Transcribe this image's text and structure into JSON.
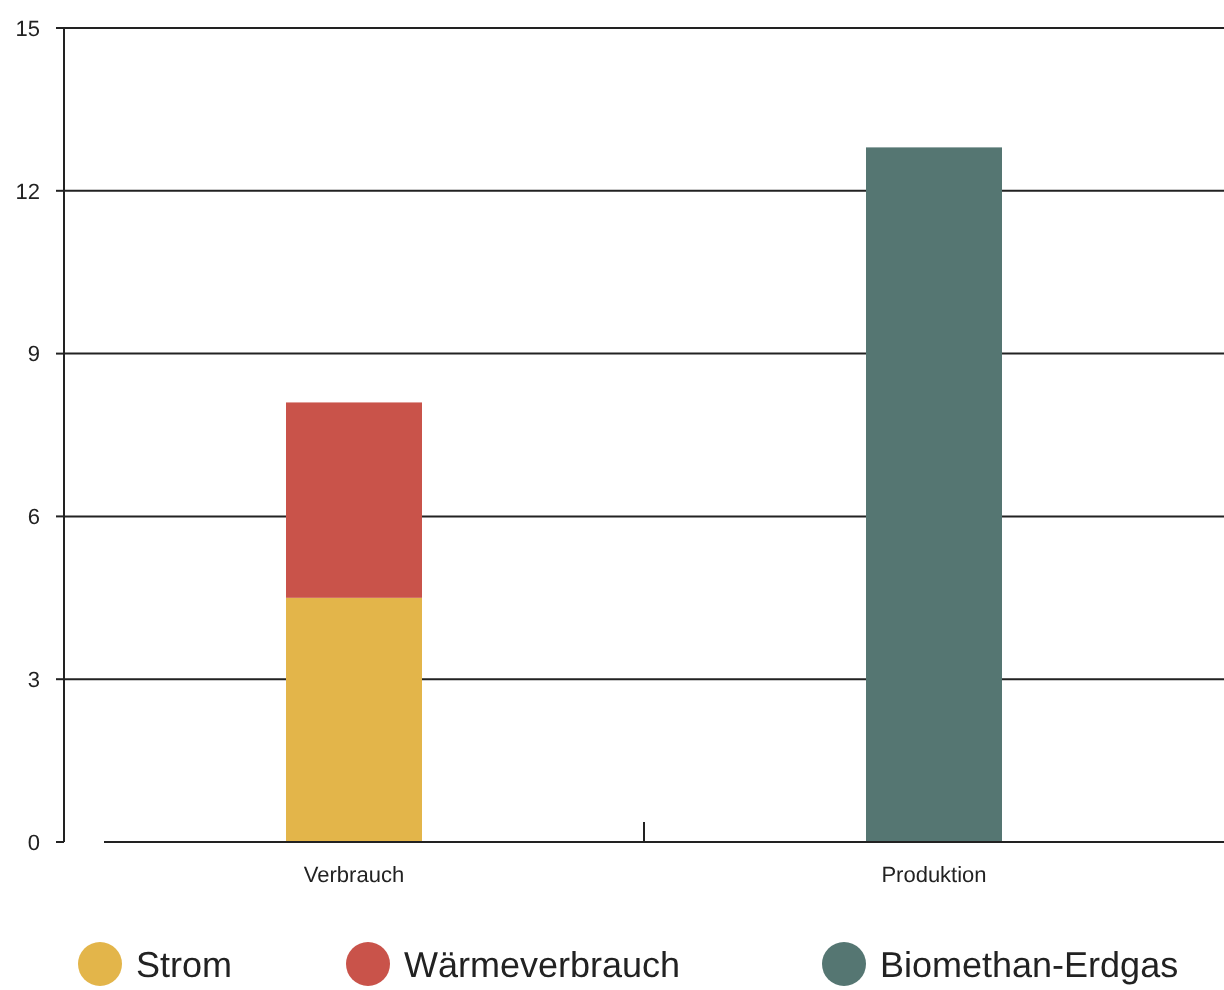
{
  "chart_data": {
    "type": "bar",
    "stacked": true,
    "categories": [
      "Verbrauch",
      "Produktion"
    ],
    "series": [
      {
        "name": "Strom",
        "color": "#e3b54a",
        "values": [
          4.5,
          null
        ]
      },
      {
        "name": "Wärmeverbrauch",
        "color": "#c9534a",
        "values": [
          3.6,
          null
        ]
      },
      {
        "name": "Biomethan-Erdgas",
        "color": "#557672",
        "values": [
          null,
          12.8
        ]
      }
    ],
    "ylim": [
      0,
      15
    ],
    "yticks": [
      0,
      3,
      6,
      9,
      12,
      15
    ],
    "grid": "y",
    "legend": "bottom"
  }
}
